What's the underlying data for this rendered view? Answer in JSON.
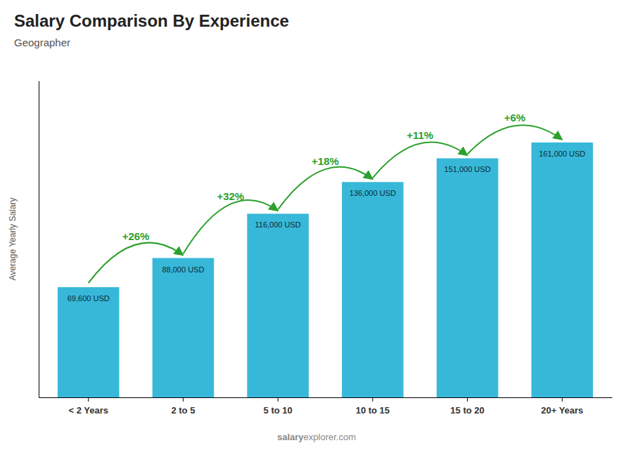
{
  "chart_data": {
    "type": "bar",
    "title": "Salary Comparison By Experience",
    "subtitle": "Geographer",
    "ylabel": "Average Yearly Salary",
    "categories": [
      "< 2 Years",
      "2 to 5",
      "5 to 10",
      "10 to 15",
      "15 to 20",
      "20+ Years"
    ],
    "values": [
      69600,
      88000,
      116000,
      136000,
      151000,
      161000
    ],
    "value_labels": [
      "69,600 USD",
      "88,000 USD",
      "116,000 USD",
      "136,000 USD",
      "151,000 USD",
      "161,000 USD"
    ],
    "data_labels": true,
    "annotations": [
      "+26%",
      "+32%",
      "+18%",
      "+11%",
      "+6%"
    ],
    "footer": [
      "salary",
      "explorer.com"
    ],
    "color": "#38b8d8",
    "ylim": [
      0,
      200000
    ],
    "tick_labels": "x",
    "grid": false
  }
}
